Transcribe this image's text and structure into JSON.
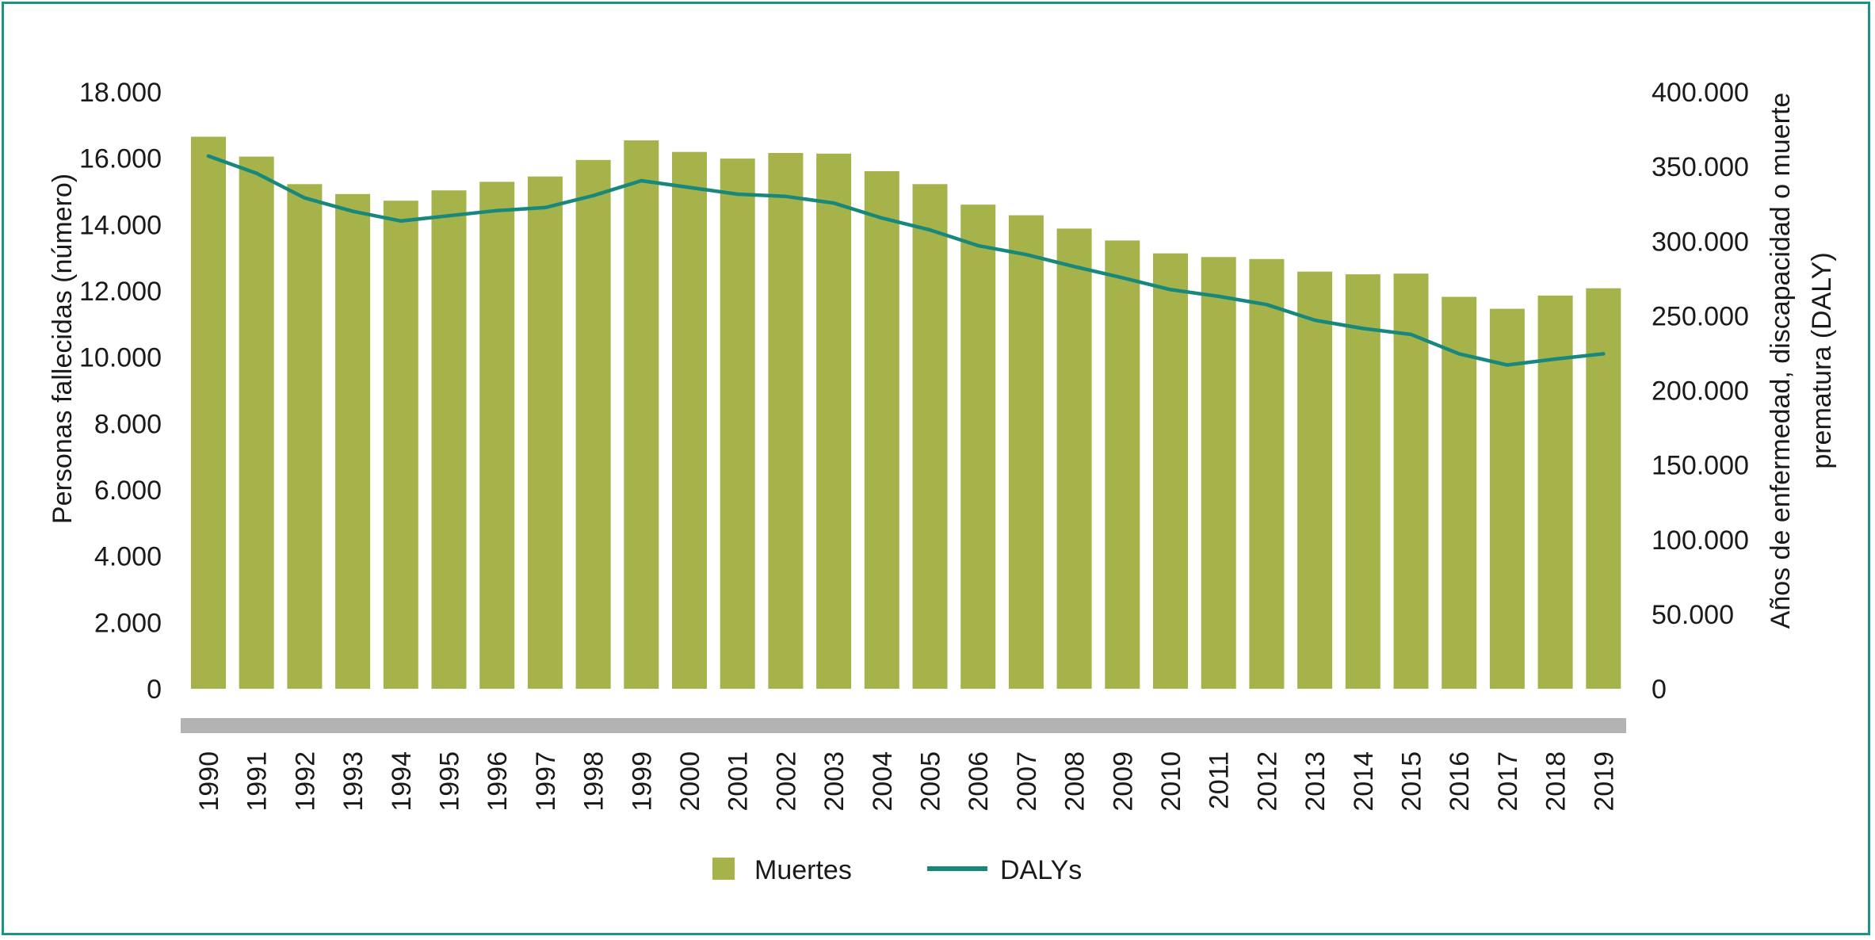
{
  "chart_data": {
    "type": "bar",
    "categories": [
      "1990",
      "1991",
      "1992",
      "1993",
      "1994",
      "1995",
      "1996",
      "1997",
      "1998",
      "1999",
      "2000",
      "2001",
      "2002",
      "2003",
      "2004",
      "2005",
      "2006",
      "2007",
      "2008",
      "2009",
      "2010",
      "2011",
      "2012",
      "2013",
      "2014",
      "2015",
      "2016",
      "2017",
      "2018",
      "2019"
    ],
    "series": [
      {
        "name": "Muertes",
        "type": "bar",
        "axis": "left",
        "color": "#a5b34a",
        "values": [
          16650,
          16050,
          15220,
          14920,
          14720,
          15030,
          15290,
          15450,
          15950,
          16540,
          16190,
          15990,
          16160,
          16140,
          15610,
          15220,
          14600,
          14280,
          13880,
          13520,
          13130,
          13020,
          12960,
          12580,
          12500,
          12520,
          11820,
          11460,
          11860,
          12080
        ]
      },
      {
        "name": "DALYs",
        "type": "line",
        "axis": "right",
        "color": "#18877c",
        "values": [
          357000,
          345500,
          329000,
          320000,
          313500,
          317000,
          320500,
          322500,
          330500,
          340500,
          336000,
          331500,
          330000,
          325500,
          315500,
          307500,
          297000,
          291000,
          283000,
          275500,
          267500,
          263000,
          257500,
          247000,
          241500,
          237500,
          224500,
          217000,
          221000,
          224500
        ]
      }
    ],
    "y_left": {
      "label": "Personas fallecidas (número)",
      "ylim": [
        0,
        18000
      ],
      "ticks": [
        "0",
        "2.000",
        "4.000",
        "6.000",
        "8.000",
        "10.000",
        "12.000",
        "14.000",
        "16.000",
        "18.000"
      ]
    },
    "y_right": {
      "label_line1": "Años de enfermedad, discapacidad o muerte",
      "label_line2": "prematura (DALY)",
      "ylim": [
        0,
        400000
      ],
      "ticks": [
        "0",
        "50.000",
        "100.000",
        "150.000",
        "200.000",
        "250.000",
        "300.000",
        "350.000",
        "400.000"
      ]
    },
    "xlabel": "",
    "grid": false,
    "legend": {
      "position": "bottom-center",
      "entries": [
        "Muertes",
        "DALYs"
      ]
    },
    "baseline_band_color": "#b3b3b3",
    "frame_color": "#1a9487"
  }
}
